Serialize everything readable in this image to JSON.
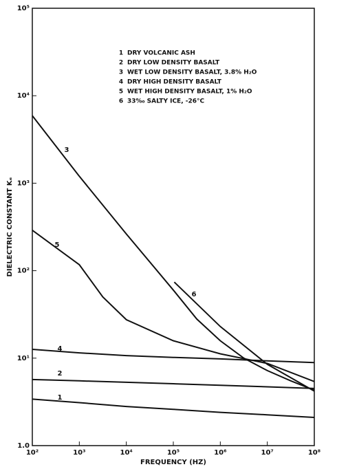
{
  "chart_data": {
    "type": "line",
    "xlabel": "FREQUENCY (HZ)",
    "ylabel": "DIELECTRIC CONSTANT Kₑ",
    "xscale": "log",
    "yscale": "log",
    "xlim": [
      100,
      100000000
    ],
    "ylim": [
      1,
      100000
    ],
    "xticks": [
      {
        "value": 100,
        "label": "10²"
      },
      {
        "value": 1000,
        "label": "10³"
      },
      {
        "value": 10000,
        "label": "10⁴"
      },
      {
        "value": 100000,
        "label": "10⁵"
      },
      {
        "value": 1000000,
        "label": "10⁶"
      },
      {
        "value": 10000000,
        "label": "10⁷"
      },
      {
        "value": 100000000,
        "label": "10⁸"
      }
    ],
    "yticks": [
      {
        "value": 1,
        "label": "1.0"
      },
      {
        "value": 10,
        "label": "10¹"
      },
      {
        "value": 100,
        "label": "10²"
      },
      {
        "value": 1000,
        "label": "10³"
      },
      {
        "value": 10000,
        "label": "10⁴"
      },
      {
        "value": 100000,
        "label": "10⁵"
      }
    ],
    "color": "#111111",
    "series": [
      {
        "label": "1",
        "name": "DRY VOLCANIC ASH",
        "x": [
          100,
          1000,
          10000,
          100000,
          1000000,
          10000000,
          100000000
        ],
        "values": [
          3.4,
          3.1,
          2.8,
          2.6,
          2.4,
          2.25,
          2.1
        ]
      },
      {
        "label": "2",
        "name": "DRY LOW DENSITY BASALT",
        "x": [
          100,
          1000,
          10000,
          100000,
          1000000,
          10000000,
          100000000
        ],
        "values": [
          5.7,
          5.5,
          5.3,
          5.1,
          4.9,
          4.7,
          4.5
        ]
      },
      {
        "label": "3",
        "name": "WET LOW DENSITY BASALT, 3.8% H₂O",
        "x": [
          100,
          1000,
          10000,
          100000,
          316000,
          1000000,
          3160000,
          10000000,
          31600000,
          100000000
        ],
        "values": [
          5900,
          1200,
          263,
          60,
          28,
          15.8,
          10,
          7.2,
          5.5,
          4.3
        ]
      },
      {
        "label": "4",
        "name": "DRY HIGH DENSITY BASALT",
        "x": [
          100,
          1000,
          10000,
          100000,
          1000000,
          10000000,
          100000000
        ],
        "values": [
          12.6,
          11.5,
          10.7,
          10.2,
          9.8,
          9.3,
          8.9
        ]
      },
      {
        "label": "5",
        "name": "WET HIGH DENSITY BASALT, 1% H₂O",
        "x": [
          100,
          1000,
          3160,
          10000,
          100000,
          1000000,
          10000000,
          100000000
        ],
        "values": [
          290,
          117,
          50,
          27.5,
          15.8,
          11.2,
          8.7,
          5.4
        ]
      },
      {
        "label": "6",
        "name": "33‰ SALTY ICE, -26°C",
        "x": [
          105000,
          1000000,
          10000000,
          100000000
        ],
        "values": [
          74,
          23,
          8.5,
          4.2
        ]
      }
    ]
  }
}
